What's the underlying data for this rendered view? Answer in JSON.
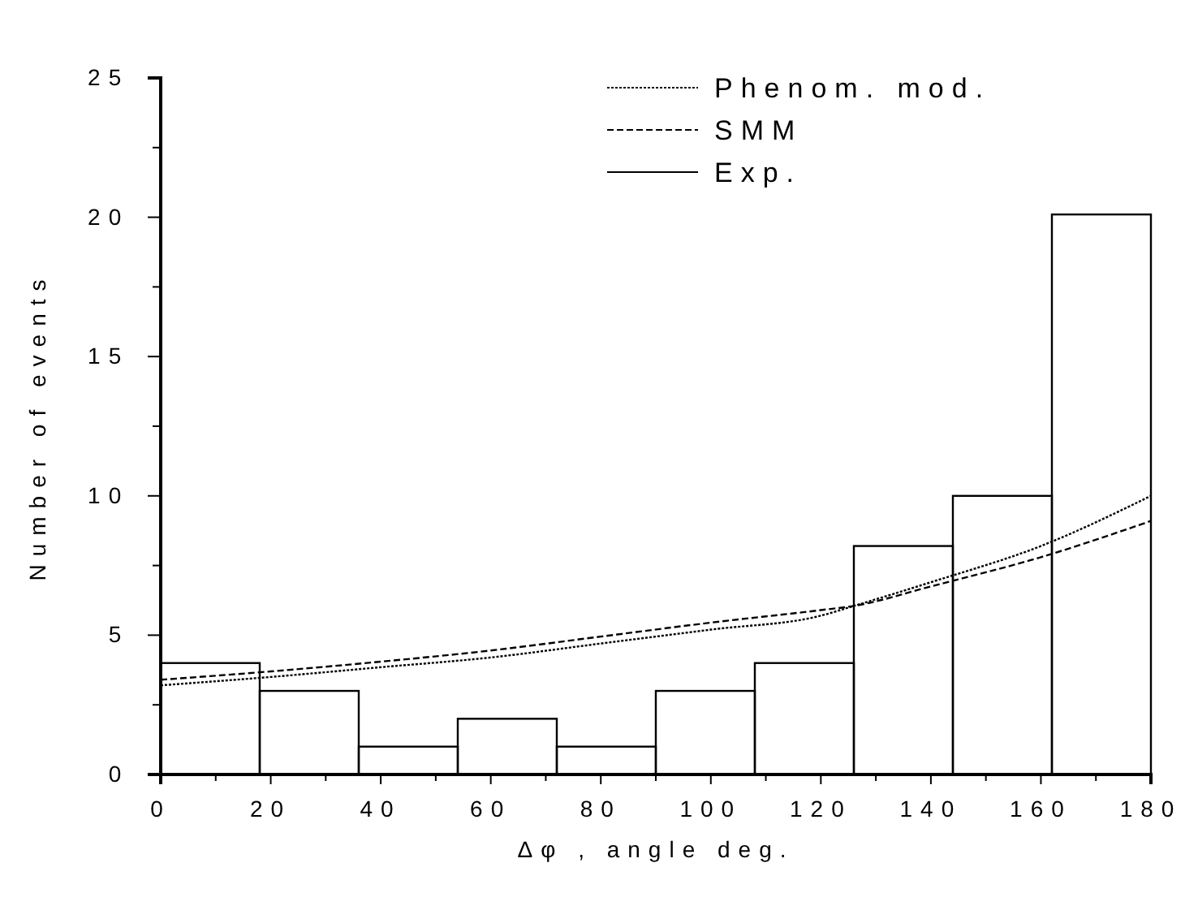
{
  "chart_data": {
    "type": "histogram",
    "xlabel": "Δφ , angle deg.",
    "ylabel": "Number of events",
    "xlim": [
      0,
      180
    ],
    "ylim": [
      0,
      25
    ],
    "xticks": [
      0,
      {
        "value": 10,
        "label": null
      },
      20,
      {
        "value": 30,
        "label": null
      },
      40,
      {
        "value": 50,
        "label": null
      },
      60,
      {
        "value": 70,
        "label": null
      },
      80,
      {
        "value": 90,
        "label": null
      },
      100,
      {
        "value": 110,
        "label": null
      },
      120,
      {
        "value": 130,
        "label": null
      },
      140,
      {
        "value": 150,
        "label": null
      },
      160,
      {
        "value": 170,
        "label": null
      },
      180
    ],
    "yticks": [
      0,
      {
        "value": 2.5,
        "label": null
      },
      5,
      {
        "value": 7.5,
        "label": null
      },
      10,
      {
        "value": 12.5,
        "label": null
      },
      15,
      {
        "value": 17.5,
        "label": null
      },
      20,
      {
        "value": 22.5,
        "label": null
      },
      25
    ],
    "legend": "top right",
    "grid": false,
    "series": [
      {
        "name": "Phenom. mod.",
        "type": "line",
        "line_style": "dotted",
        "color": "#000000",
        "x": [
          0,
          20,
          40,
          60,
          80,
          100,
          120,
          126,
          140,
          160,
          180
        ],
        "values": [
          3.2,
          3.5,
          3.85,
          4.2,
          4.7,
          5.2,
          5.7,
          6.05,
          6.9,
          8.2,
          10
        ]
      },
      {
        "name": "SMM",
        "type": "line",
        "line_style": "dashed",
        "color": "#000000",
        "x": [
          0,
          20,
          40,
          60,
          80,
          100,
          120,
          126,
          140,
          160,
          180
        ],
        "values": [
          3.4,
          3.7,
          4.05,
          4.45,
          4.95,
          5.45,
          5.9,
          6.05,
          6.75,
          7.8,
          9.1
        ]
      },
      {
        "name": "Exp.",
        "line_style": "solid",
        "color": "#000000",
        "bins": [
          0,
          18,
          36,
          54,
          72,
          90,
          108,
          126,
          144,
          162,
          180
        ],
        "values": [
          4,
          3,
          1,
          2,
          1,
          3,
          4,
          8.2,
          10,
          20.1
        ]
      }
    ]
  }
}
